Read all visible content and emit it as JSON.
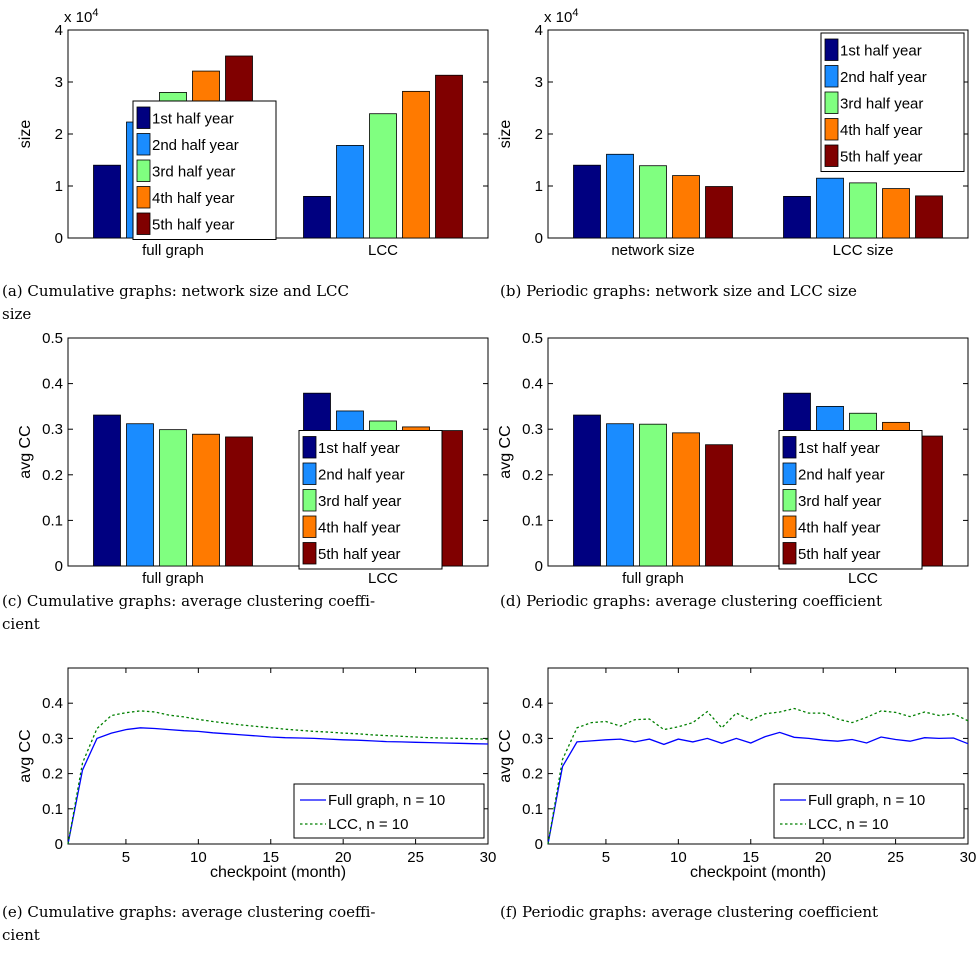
{
  "colors": {
    "bars": [
      "#000080",
      "#1a8cff",
      "#80ff80",
      "#ff7a00",
      "#800000"
    ],
    "full_line": "#0000ff",
    "lcc_line": "#007f00"
  },
  "legend_half_years": [
    "1st half year",
    "2nd half year",
    "3rd half year",
    "4th half year",
    "5th half year"
  ],
  "chart_data": [
    {
      "id": "a",
      "type": "bar",
      "caption": "(a) Cumulative graphs: network size and LCC size",
      "categories": [
        "full graph",
        "LCC"
      ],
      "series": [
        {
          "name": "1st half year",
          "values": [
            14000,
            8000
          ]
        },
        {
          "name": "2nd half year",
          "values": [
            22300,
            17800
          ]
        },
        {
          "name": "3rd half year",
          "values": [
            28000,
            23900
          ]
        },
        {
          "name": "4th half year",
          "values": [
            32100,
            28200
          ]
        },
        {
          "name": "5th half year",
          "values": [
            35000,
            31300
          ]
        }
      ],
      "ylabel": "size",
      "ylim": [
        0,
        40000
      ],
      "yticks": [
        "0",
        "1",
        "2",
        "3",
        "4"
      ],
      "exponent": "x 10",
      "exponent_power": "4",
      "legend": "center"
    },
    {
      "id": "b",
      "type": "bar",
      "caption": "(b) Periodic graphs: network size and LCC size",
      "categories": [
        "network size",
        "LCC size"
      ],
      "series": [
        {
          "name": "1st half year",
          "values": [
            14000,
            8000
          ]
        },
        {
          "name": "2nd half year",
          "values": [
            16100,
            11500
          ]
        },
        {
          "name": "3rd half year",
          "values": [
            13900,
            10600
          ]
        },
        {
          "name": "4th half year",
          "values": [
            12000,
            9500
          ]
        },
        {
          "name": "5th half year",
          "values": [
            9900,
            8100
          ]
        }
      ],
      "ylabel": "size",
      "ylim": [
        0,
        40000
      ],
      "yticks": [
        "0",
        "1",
        "2",
        "3",
        "4"
      ],
      "exponent": "x 10",
      "exponent_power": "4",
      "legend": "top-right"
    },
    {
      "id": "c",
      "type": "bar",
      "caption": "(c) Cumulative graphs: average clustering coefficient",
      "categories": [
        "full graph",
        "LCC"
      ],
      "series": [
        {
          "name": "1st half year",
          "values": [
            0.331,
            0.379
          ]
        },
        {
          "name": "2nd half year",
          "values": [
            0.312,
            0.34
          ]
        },
        {
          "name": "3rd half year",
          "values": [
            0.299,
            0.318
          ]
        },
        {
          "name": "4th half year",
          "values": [
            0.289,
            0.305
          ]
        },
        {
          "name": "5th half year",
          "values": [
            0.283,
            0.297
          ]
        }
      ],
      "ylabel": "avg CC",
      "ylim": [
        0,
        0.5
      ],
      "yticks": [
        "0",
        "0.1",
        "0.2",
        "0.3",
        "0.4",
        "0.5"
      ],
      "legend": "bottom-right"
    },
    {
      "id": "d",
      "type": "bar",
      "caption": "(d) Periodic graphs: average clustering coefficient",
      "categories": [
        "full graph",
        "LCC"
      ],
      "series": [
        {
          "name": "1st half year",
          "values": [
            0.331,
            0.379
          ]
        },
        {
          "name": "2nd half year",
          "values": [
            0.312,
            0.35
          ]
        },
        {
          "name": "3rd half year",
          "values": [
            0.311,
            0.335
          ]
        },
        {
          "name": "4th half year",
          "values": [
            0.292,
            0.315
          ]
        },
        {
          "name": "5th half year",
          "values": [
            0.266,
            0.285
          ]
        }
      ],
      "ylabel": "avg CC",
      "ylim": [
        0,
        0.5
      ],
      "yticks": [
        "0",
        "0.1",
        "0.2",
        "0.3",
        "0.4",
        "0.5"
      ],
      "legend": "bottom-right"
    },
    {
      "id": "e",
      "type": "line",
      "caption": "(e) Cumulative graphs: average clustering coefficient",
      "xlabel": "checkpoint (month)",
      "ylabel": "avg CC",
      "xlim": [
        1,
        30
      ],
      "ylim": [
        0,
        0.5
      ],
      "xticks": [
        5,
        10,
        15,
        20,
        25,
        30
      ],
      "yticks": [
        "0",
        "0.1",
        "0.2",
        "0.3",
        "0.4"
      ],
      "x": [
        1,
        2,
        3,
        4,
        5,
        6,
        7,
        8,
        9,
        10,
        11,
        12,
        13,
        14,
        15,
        16,
        17,
        18,
        19,
        20,
        21,
        22,
        23,
        24,
        25,
        26,
        27,
        28,
        29,
        30
      ],
      "series": [
        {
          "name": "Full graph, n = 10",
          "style": "solid",
          "values": [
            0,
            0.21,
            0.3,
            0.315,
            0.325,
            0.33,
            0.328,
            0.325,
            0.322,
            0.32,
            0.316,
            0.313,
            0.31,
            0.307,
            0.304,
            0.302,
            0.301,
            0.3,
            0.298,
            0.296,
            0.295,
            0.293,
            0.291,
            0.29,
            0.289,
            0.288,
            0.287,
            0.286,
            0.285,
            0.284
          ]
        },
        {
          "name": "LCC, n = 10",
          "style": "dotted",
          "values": [
            0,
            0.23,
            0.328,
            0.365,
            0.373,
            0.378,
            0.375,
            0.366,
            0.361,
            0.354,
            0.348,
            0.343,
            0.338,
            0.334,
            0.33,
            0.326,
            0.323,
            0.32,
            0.318,
            0.315,
            0.313,
            0.31,
            0.308,
            0.306,
            0.304,
            0.302,
            0.301,
            0.3,
            0.299,
            0.298
          ]
        }
      ],
      "legend": "bottom-right"
    },
    {
      "id": "f",
      "type": "line",
      "caption": "(f) Periodic graphs: average clustering coefficient",
      "xlabel": "checkpoint (month)",
      "ylabel": "avg CC",
      "xlim": [
        1,
        30
      ],
      "ylim": [
        0,
        0.5
      ],
      "xticks": [
        5,
        10,
        15,
        20,
        25,
        30
      ],
      "yticks": [
        "0",
        "0.1",
        "0.2",
        "0.3",
        "0.4"
      ],
      "x": [
        1,
        2,
        3,
        4,
        5,
        6,
        7,
        8,
        9,
        10,
        11,
        12,
        13,
        14,
        15,
        16,
        17,
        18,
        19,
        20,
        21,
        22,
        23,
        24,
        25,
        26,
        27,
        28,
        29,
        30
      ],
      "series": [
        {
          "name": "Full graph, n = 10",
          "style": "solid",
          "values": [
            0,
            0.22,
            0.29,
            0.293,
            0.296,
            0.298,
            0.29,
            0.298,
            0.283,
            0.298,
            0.29,
            0.3,
            0.286,
            0.3,
            0.287,
            0.305,
            0.317,
            0.303,
            0.3,
            0.295,
            0.292,
            0.297,
            0.287,
            0.304,
            0.297,
            0.292,
            0.302,
            0.3,
            0.301,
            0.285
          ]
        },
        {
          "name": "LCC, n = 10",
          "style": "dotted",
          "values": [
            0,
            0.24,
            0.33,
            0.345,
            0.348,
            0.335,
            0.353,
            0.355,
            0.325,
            0.333,
            0.345,
            0.376,
            0.33,
            0.372,
            0.352,
            0.37,
            0.375,
            0.385,
            0.372,
            0.372,
            0.355,
            0.345,
            0.36,
            0.378,
            0.374,
            0.362,
            0.375,
            0.365,
            0.37,
            0.35
          ]
        }
      ],
      "legend": "bottom-right"
    }
  ]
}
